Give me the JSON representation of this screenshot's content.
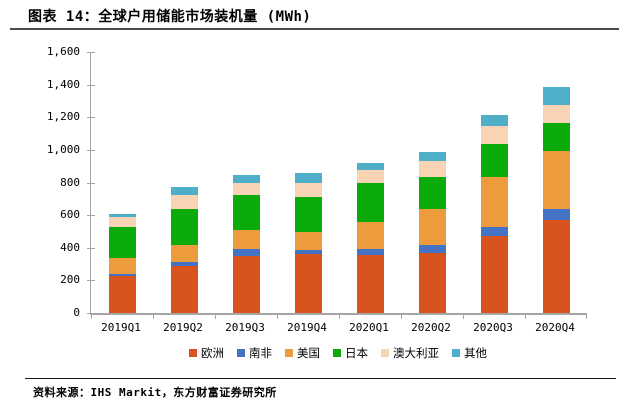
{
  "title": "图表 14：全球户用储能市场装机量 (MWh)",
  "source": "资料来源：IHS Markit，东方财富证券研究所",
  "chart_data": {
    "type": "bar",
    "stacked": true,
    "title": "全球户用储能市场装机量 (MWh)",
    "xlabel": "",
    "ylabel": "",
    "ylim": [
      0,
      1600
    ],
    "ytick_values": [
      0,
      200,
      400,
      600,
      800,
      1000,
      1200,
      1400,
      1600
    ],
    "ytick_labels": [
      "0",
      "200",
      "400",
      "600",
      "800",
      "1,000",
      "1,200",
      "1,400",
      "1,600"
    ],
    "grid": false,
    "legend_position": "bottom",
    "categories": [
      "2019Q1",
      "2019Q2",
      "2019Q3",
      "2019Q4",
      "2020Q1",
      "2020Q2",
      "2020Q3",
      "2020Q4"
    ],
    "series": [
      {
        "key": "europe",
        "name": "欧洲",
        "color": "#D9531E",
        "values": [
          225,
          290,
          350,
          360,
          355,
          370,
          470,
          570
        ]
      },
      {
        "key": "south-africa",
        "name": "南非",
        "color": "#4472C4",
        "values": [
          13,
          20,
          40,
          26,
          35,
          50,
          55,
          70
        ]
      },
      {
        "key": "usa",
        "name": "美国",
        "color": "#ED9C3D",
        "values": [
          100,
          110,
          117,
          112,
          170,
          215,
          310,
          352
        ]
      },
      {
        "key": "japan",
        "name": "日本",
        "color": "#0BAB0B",
        "values": [
          187,
          220,
          217,
          212,
          240,
          200,
          200,
          171
        ]
      },
      {
        "key": "australia",
        "name": "澳大利亚",
        "color": "#F9D4B4",
        "values": [
          62,
          82,
          72,
          86,
          78,
          98,
          113,
          112
        ]
      },
      {
        "key": "others",
        "name": "其他",
        "color": "#4FAFC9",
        "values": [
          20,
          48,
          51,
          61,
          41,
          52,
          68,
          110
        ]
      }
    ],
    "totals": [
      607,
      770,
      847,
      857,
      919,
      985,
      1216,
      1385
    ]
  }
}
